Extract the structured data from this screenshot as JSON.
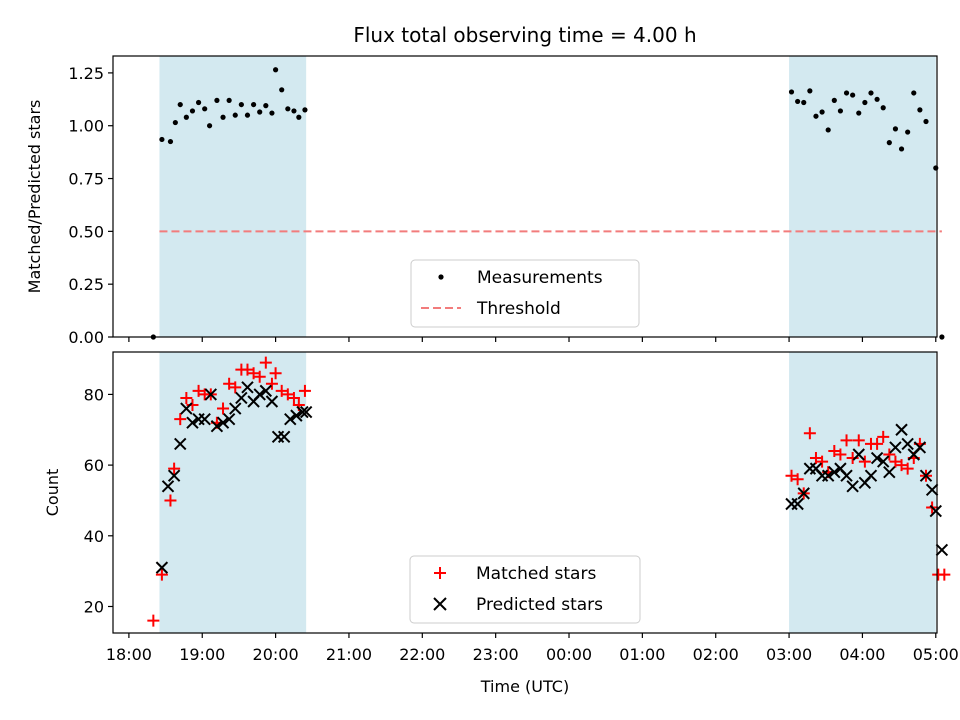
{
  "colors": {
    "shade": "#d3e9f0",
    "threshold": "#f27c7c",
    "measurement": "#000000",
    "matched": "#ff0000",
    "predicted": "#000000"
  },
  "chart_data": [
    {
      "type": "scatter",
      "title": "Flux total observing time = 4.00 h",
      "xlabel": "",
      "ylabel": "Matched/Predicted stars",
      "ylim": [
        0,
        1.33
      ],
      "yticks": [
        0.0,
        0.25,
        0.5,
        0.75,
        1.0,
        1.25
      ],
      "ytick_labels": [
        "0.00",
        "0.25",
        "0.50",
        "0.75",
        "1.00",
        "1.25"
      ],
      "shaded_intervals": [
        [
          "18:25",
          "20:25"
        ],
        [
          "03:00",
          "05:00"
        ]
      ],
      "threshold": {
        "name": "Threshold",
        "y": 0.5,
        "x_range": [
          "18:25",
          "05:05"
        ]
      },
      "series": [
        {
          "name": "Measurements",
          "points": [
            [
              "18:20",
              0.0
            ],
            [
              "18:27",
              0.935
            ],
            [
              "18:34",
              0.925
            ],
            [
              "18:38",
              1.015
            ],
            [
              "18:42",
              1.1
            ],
            [
              "18:47",
              1.04
            ],
            [
              "18:52",
              1.07
            ],
            [
              "18:57",
              1.11
            ],
            [
              "19:02",
              1.08
            ],
            [
              "19:06",
              1.0
            ],
            [
              "19:12",
              1.12
            ],
            [
              "19:17",
              1.04
            ],
            [
              "19:22",
              1.12
            ],
            [
              "19:27",
              1.05
            ],
            [
              "19:32",
              1.1
            ],
            [
              "19:37",
              1.05
            ],
            [
              "19:42",
              1.1
            ],
            [
              "19:47",
              1.065
            ],
            [
              "19:52",
              1.095
            ],
            [
              "19:57",
              1.06
            ],
            [
              "20:00",
              1.265
            ],
            [
              "20:05",
              1.17
            ],
            [
              "20:10",
              1.08
            ],
            [
              "20:15",
              1.07
            ],
            [
              "20:19",
              1.04
            ],
            [
              "20:24",
              1.075
            ],
            [
              "03:02",
              1.16
            ],
            [
              "03:07",
              1.115
            ],
            [
              "03:12",
              1.11
            ],
            [
              "03:17",
              1.165
            ],
            [
              "03:22",
              1.045
            ],
            [
              "03:27",
              1.065
            ],
            [
              "03:32",
              0.98
            ],
            [
              "03:37",
              1.12
            ],
            [
              "03:42",
              1.07
            ],
            [
              "03:47",
              1.155
            ],
            [
              "03:52",
              1.145
            ],
            [
              "03:57",
              1.06
            ],
            [
              "04:02",
              1.11
            ],
            [
              "04:07",
              1.155
            ],
            [
              "04:12",
              1.125
            ],
            [
              "04:17",
              1.085
            ],
            [
              "04:22",
              0.92
            ],
            [
              "04:27",
              0.985
            ],
            [
              "04:32",
              0.89
            ],
            [
              "04:37",
              0.97
            ],
            [
              "04:42",
              1.155
            ],
            [
              "04:47",
              1.075
            ],
            [
              "04:52",
              1.02
            ],
            [
              "05:00",
              0.8
            ],
            [
              "05:05",
              0.0
            ]
          ]
        }
      ],
      "legend": {
        "placement": "lower-center",
        "entries": [
          "Measurements",
          "Threshold"
        ]
      }
    },
    {
      "type": "scatter",
      "title": "",
      "xlabel": "Time (UTC)",
      "ylabel": "Count",
      "ylim": [
        12.5,
        92
      ],
      "yticks": [
        20,
        40,
        60,
        80
      ],
      "ytick_labels": [
        "20",
        "40",
        "60",
        "80"
      ],
      "xticks": [
        "18:00",
        "19:00",
        "20:00",
        "21:00",
        "22:00",
        "23:00",
        "00:00",
        "01:00",
        "02:00",
        "03:00",
        "04:00",
        "05:00"
      ],
      "shaded_intervals": [
        [
          "18:25",
          "20:25"
        ],
        [
          "03:00",
          "05:00"
        ]
      ],
      "series": [
        {
          "name": "Matched stars",
          "marker": "plus",
          "points": [
            [
              "18:20",
              16
            ],
            [
              "18:27",
              29
            ],
            [
              "18:34",
              50
            ],
            [
              "18:37",
              59
            ],
            [
              "18:42",
              73
            ],
            [
              "18:47",
              79
            ],
            [
              "18:52",
              77
            ],
            [
              "18:57",
              81
            ],
            [
              "19:02",
              80
            ],
            [
              "19:07",
              80
            ],
            [
              "19:12",
              72
            ],
            [
              "19:17",
              76
            ],
            [
              "19:22",
              83
            ],
            [
              "19:27",
              82
            ],
            [
              "19:32",
              87
            ],
            [
              "19:37",
              87
            ],
            [
              "19:42",
              86
            ],
            [
              "19:47",
              85
            ],
            [
              "19:52",
              89
            ],
            [
              "19:57",
              83
            ],
            [
              "20:00",
              86
            ],
            [
              "20:05",
              81
            ],
            [
              "20:10",
              80
            ],
            [
              "20:15",
              79
            ],
            [
              "20:19",
              77
            ],
            [
              "20:24",
              81
            ],
            [
              "03:02",
              57
            ],
            [
              "03:07",
              56
            ],
            [
              "03:12",
              52
            ],
            [
              "03:17",
              69
            ],
            [
              "03:22",
              62
            ],
            [
              "03:27",
              61
            ],
            [
              "03:32",
              58
            ],
            [
              "03:37",
              64
            ],
            [
              "03:42",
              63
            ],
            [
              "03:47",
              67
            ],
            [
              "03:52",
              62
            ],
            [
              "03:57",
              67
            ],
            [
              "04:02",
              61
            ],
            [
              "04:07",
              66
            ],
            [
              "04:12",
              66
            ],
            [
              "04:17",
              68
            ],
            [
              "04:22",
              63
            ],
            [
              "04:27",
              61
            ],
            [
              "04:32",
              60
            ],
            [
              "04:37",
              59
            ],
            [
              "04:42",
              62
            ],
            [
              "04:47",
              66
            ],
            [
              "04:52",
              57
            ],
            [
              "04:57",
              48
            ],
            [
              "05:02",
              29
            ],
            [
              "05:07",
              29
            ]
          ]
        },
        {
          "name": "Predicted stars",
          "marker": "x",
          "points": [
            [
              "18:27",
              31
            ],
            [
              "18:32",
              54
            ],
            [
              "18:37",
              57
            ],
            [
              "18:42",
              66
            ],
            [
              "18:47",
              76
            ],
            [
              "18:52",
              72
            ],
            [
              "18:57",
              73
            ],
            [
              "19:02",
              73
            ],
            [
              "19:07",
              80
            ],
            [
              "19:12",
              71
            ],
            [
              "19:17",
              72
            ],
            [
              "19:22",
              73
            ],
            [
              "19:27",
              76
            ],
            [
              "19:32",
              79
            ],
            [
              "19:37",
              82
            ],
            [
              "19:42",
              78
            ],
            [
              "19:47",
              80
            ],
            [
              "19:52",
              81
            ],
            [
              "19:57",
              78
            ],
            [
              "20:02",
              68
            ],
            [
              "20:07",
              68
            ],
            [
              "20:12",
              73
            ],
            [
              "20:17",
              74
            ],
            [
              "20:22",
              75
            ],
            [
              "20:25",
              75
            ],
            [
              "03:02",
              49
            ],
            [
              "03:07",
              49
            ],
            [
              "03:12",
              52
            ],
            [
              "03:17",
              59
            ],
            [
              "03:22",
              59
            ],
            [
              "03:27",
              57
            ],
            [
              "03:32",
              57
            ],
            [
              "03:37",
              58
            ],
            [
              "03:42",
              59
            ],
            [
              "03:47",
              57
            ],
            [
              "03:52",
              54
            ],
            [
              "03:57",
              63
            ],
            [
              "04:02",
              55
            ],
            [
              "04:07",
              57
            ],
            [
              "04:12",
              62
            ],
            [
              "04:17",
              61
            ],
            [
              "04:22",
              58
            ],
            [
              "04:27",
              65
            ],
            [
              "04:32",
              70
            ],
            [
              "04:37",
              66
            ],
            [
              "04:42",
              63
            ],
            [
              "04:47",
              65
            ],
            [
              "04:52",
              57
            ],
            [
              "04:57",
              53
            ],
            [
              "05:00",
              47
            ],
            [
              "05:05",
              36
            ]
          ]
        }
      ],
      "legend": {
        "placement": "lower-center",
        "entries": [
          "Matched stars",
          "Predicted stars"
        ]
      }
    }
  ]
}
